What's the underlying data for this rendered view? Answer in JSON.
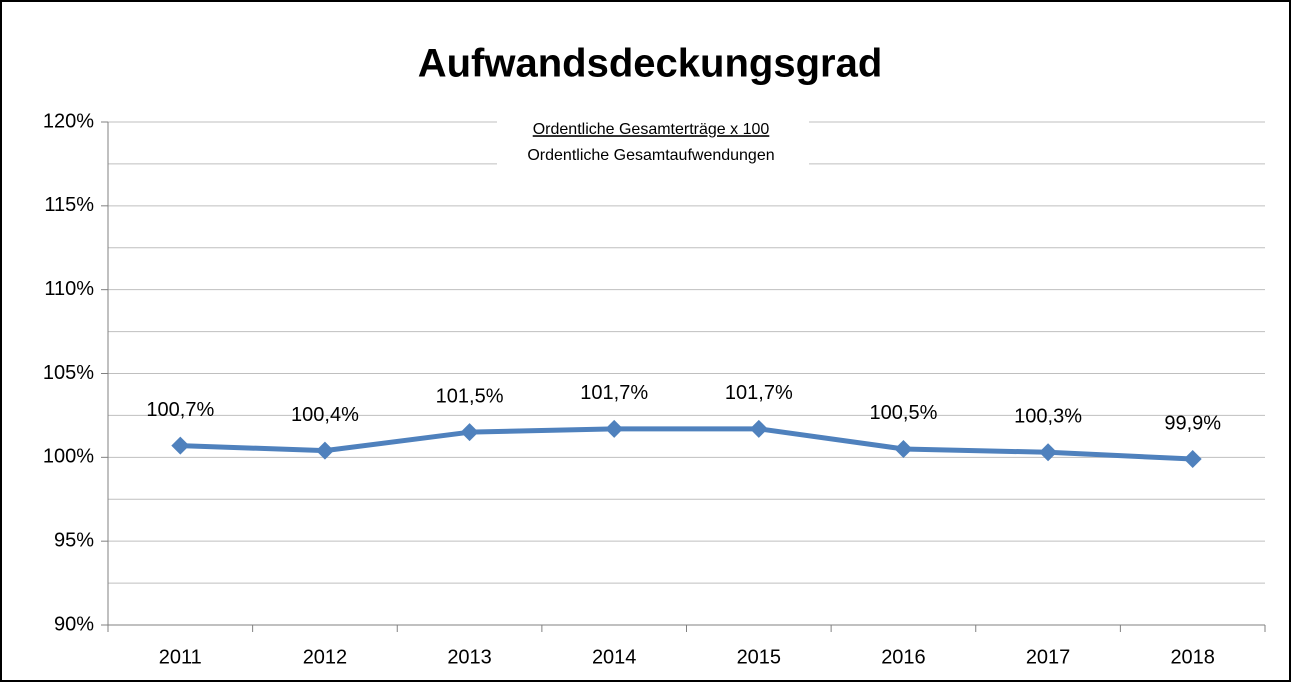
{
  "chart_data": {
    "type": "line",
    "title": "Aufwandsdeckungsgrad",
    "annotation": {
      "numerator": "Ordentliche Gesamterträge x 100",
      "denominator": "Ordentliche Gesamtaufwendungen"
    },
    "categories": [
      "2011",
      "2012",
      "2013",
      "2014",
      "2015",
      "2016",
      "2017",
      "2018"
    ],
    "series": [
      {
        "name": "Aufwandsdeckungsgrad",
        "color": "#4f81bd",
        "values": [
          100.7,
          100.4,
          101.5,
          101.7,
          101.7,
          100.5,
          100.3,
          99.9
        ],
        "value_labels": [
          "100,7%",
          "100,4%",
          "101,5%",
          "101,7%",
          "101,7%",
          "100,5%",
          "100,3%",
          "99,9%"
        ]
      }
    ],
    "ylim": [
      90,
      120
    ],
    "yticks": [
      {
        "value": 90,
        "label": "90%"
      },
      {
        "value": 95,
        "label": "95%"
      },
      {
        "value": 100,
        "label": "100%"
      },
      {
        "value": 105,
        "label": "105%"
      },
      {
        "value": 110,
        "label": "110%"
      },
      {
        "value": 115,
        "label": "115%"
      },
      {
        "value": 120,
        "label": "120%"
      }
    ],
    "yminorticks": [
      92.5,
      97.5,
      102.5,
      107.5,
      112.5,
      117.5
    ],
    "grid": true,
    "legend": false
  }
}
